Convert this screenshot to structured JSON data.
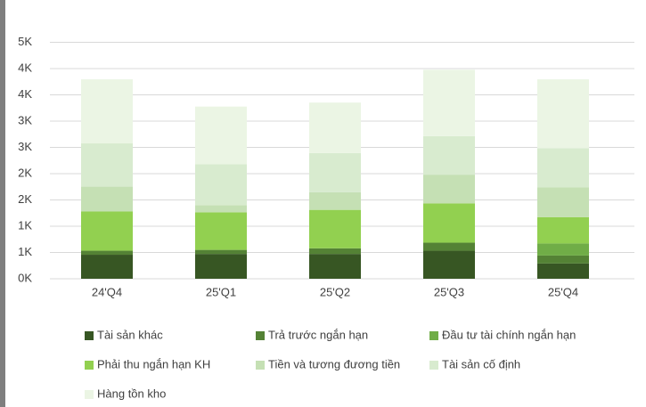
{
  "chart_data": {
    "type": "stacked_bar",
    "categories": [
      "24'Q4",
      "25'Q1",
      "25'Q2",
      "25'Q3",
      "25'Q4"
    ],
    "series": [
      {
        "name": "Tài sản khác",
        "color": "#375623",
        "values": [
          457,
          472,
          472,
          533,
          290
        ]
      },
      {
        "name": "Trả trước ngắn hạn",
        "color": "#548235",
        "values": [
          76,
          77,
          107,
          153,
          152
        ]
      },
      {
        "name": "Đầu tư tài chính ngắn hạn",
        "color": "#70ad47",
        "values": [
          0,
          0,
          0,
          0,
          229
        ]
      },
      {
        "name": "Phải thu ngắn hạn KH",
        "color": "#92d050",
        "values": [
          747,
          716,
          732,
          747,
          502
        ]
      },
      {
        "name": "Tiền và tương đương tiền",
        "color": "#c5e0b4",
        "values": [
          473,
          137,
          335,
          548,
          564
        ]
      },
      {
        "name": "Tài sản cố định",
        "color": "#d8ebcf",
        "values": [
          823,
          777,
          747,
          732,
          747
        ]
      },
      {
        "name": "Hàng tồn kho",
        "color": "#ebf5e4",
        "values": [
          1219,
          1098,
          960,
          1265,
          1311
        ]
      }
    ],
    "ylim": [
      0,
      5000
    ],
    "yticks": [
      {
        "value": 0,
        "label": "0K"
      },
      {
        "value": 500,
        "label": "1K"
      },
      {
        "value": 1000,
        "label": "1K"
      },
      {
        "value": 1500,
        "label": "2K"
      },
      {
        "value": 2000,
        "label": "2K"
      },
      {
        "value": 2500,
        "label": "3K"
      },
      {
        "value": 3000,
        "label": "3K"
      },
      {
        "value": 3500,
        "label": "4K"
      },
      {
        "value": 4000,
        "label": "4K"
      },
      {
        "value": 4500,
        "label": "5K"
      }
    ],
    "grid": true
  }
}
